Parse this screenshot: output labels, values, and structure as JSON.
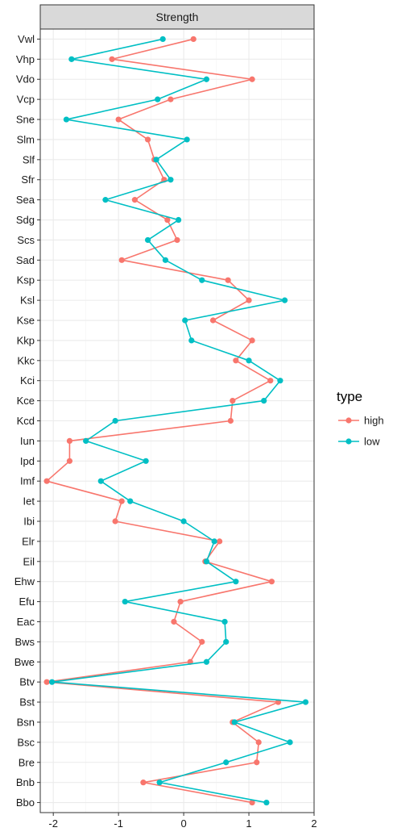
{
  "chart_data": {
    "type": "line",
    "facet_label": "Strength",
    "xlim": [
      -2.2,
      2.0
    ],
    "x_ticks": [
      -2,
      -1,
      0,
      1,
      2
    ],
    "x_tick_labels": [
      "-2",
      "-1",
      "0",
      "1",
      "2"
    ],
    "grid": true,
    "legend_position": "right",
    "legend_title": "type",
    "categories": [
      "Vwl",
      "Vhp",
      "Vdo",
      "Vcp",
      "Sne",
      "Slm",
      "Slf",
      "Sfr",
      "Sea",
      "Sdg",
      "Scs",
      "Sad",
      "Ksp",
      "Ksl",
      "Kse",
      "Kkp",
      "Kkc",
      "Kci",
      "Kce",
      "Kcd",
      "Iun",
      "Ipd",
      "Imf",
      "Iet",
      "Ibi",
      "Elr",
      "Eil",
      "Ehw",
      "Efu",
      "Eac",
      "Bws",
      "Bwe",
      "Btv",
      "Bst",
      "Bsn",
      "Bsc",
      "Bre",
      "Bnb",
      "Bbo"
    ],
    "series": [
      {
        "name": "high",
        "color": "#F8766D",
        "values": [
          0.15,
          -1.1,
          1.05,
          -0.2,
          -1.0,
          -0.55,
          -0.45,
          -0.3,
          -0.75,
          -0.25,
          -0.1,
          -0.95,
          0.68,
          1.0,
          0.45,
          1.05,
          0.8,
          1.33,
          0.75,
          0.72,
          -1.75,
          -1.75,
          -2.1,
          -0.95,
          -1.05,
          0.55,
          0.33,
          1.35,
          -0.05,
          -0.15,
          0.28,
          0.1,
          -2.1,
          1.45,
          0.75,
          1.15,
          1.12,
          -0.62,
          1.05
        ]
      },
      {
        "name": "low",
        "color": "#00BFC4",
        "values": [
          -0.32,
          -1.72,
          0.35,
          -0.4,
          -1.8,
          0.05,
          -0.42,
          -0.2,
          -1.2,
          -0.08,
          -0.55,
          -0.28,
          0.28,
          1.55,
          0.02,
          0.12,
          1.0,
          1.48,
          1.23,
          -1.05,
          -1.5,
          -0.58,
          -1.27,
          -0.82,
          0.0,
          0.47,
          0.35,
          0.8,
          -0.9,
          0.63,
          0.65,
          0.35,
          -2.02,
          1.87,
          0.78,
          1.63,
          0.65,
          -0.37,
          1.27
        ]
      }
    ]
  }
}
